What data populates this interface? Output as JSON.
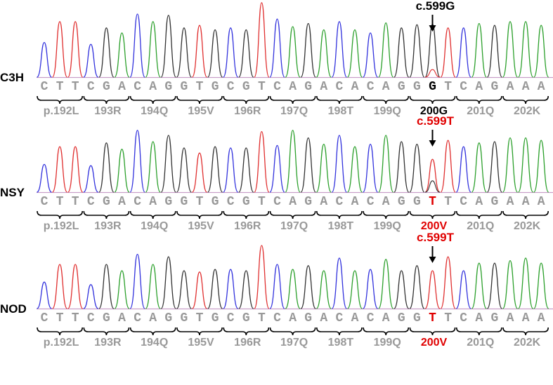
{
  "chart_data": {
    "type": "chromatogram",
    "title": "",
    "channels": [
      {
        "base": "A",
        "color": "#2ca02c"
      },
      {
        "base": "C",
        "color": "#3333dd"
      },
      {
        "base": "G",
        "color": "#333333"
      },
      {
        "base": "T",
        "color": "#e03030"
      }
    ],
    "codons": [
      "CTT",
      "CGA",
      "CAG",
      "GTG",
      "CGT",
      "CAG",
      "ACA",
      "CAG",
      "G?T",
      "CAG",
      "AAA"
    ],
    "muted_color": "#999999",
    "highlight_color_ref": "#000000",
    "highlight_color_mut": "#e00000",
    "tracks": [
      {
        "strain": "C3H",
        "sequence": [
          "C",
          "T",
          "T",
          "C",
          "G",
          "A",
          "C",
          "A",
          "G",
          "G",
          "T",
          "G",
          "C",
          "G",
          "T",
          "C",
          "A",
          "G",
          "A",
          "C",
          "A",
          "C",
          "A",
          "G",
          "G",
          "G",
          "T",
          "C",
          "A",
          "G",
          "A",
          "A",
          "A"
        ],
        "peaks": [
          55,
          88,
          88,
          52,
          78,
          70,
          100,
          88,
          98,
          78,
          82,
          75,
          78,
          75,
          118,
          92,
          80,
          85,
          75,
          88,
          75,
          70,
          86,
          78,
          83,
          84,
          78,
          78,
          85,
          82,
          88,
          88,
          82
        ],
        "secondary_peaks": [
          {
            "index": 25,
            "base": "T",
            "height": 12
          }
        ],
        "aa_labels": [
          "p.192L",
          "193R",
          "194Q",
          "195V",
          "196R",
          "197Q",
          "198T",
          "199Q",
          "200G",
          "201Q",
          "202K"
        ],
        "highlight_codon": 8,
        "highlight_base": 25,
        "mutation_label": "c.599G",
        "mutation_color": "#000000"
      },
      {
        "strain": "NSY",
        "sequence": [
          "C",
          "T",
          "T",
          "C",
          "G",
          "A",
          "C",
          "A",
          "G",
          "G",
          "T",
          "G",
          "C",
          "G",
          "T",
          "C",
          "A",
          "G",
          "A",
          "C",
          "A",
          "C",
          "A",
          "G",
          "G",
          "T",
          "T",
          "C",
          "A",
          "G",
          "A",
          "A",
          "A"
        ],
        "peaks": [
          44,
          72,
          72,
          42,
          78,
          68,
          98,
          80,
          90,
          70,
          62,
          72,
          70,
          70,
          96,
          74,
          98,
          86,
          76,
          90,
          72,
          76,
          90,
          80,
          76,
          52,
          82,
          72,
          78,
          80,
          86,
          86,
          82
        ],
        "secondary_peaks": [
          {
            "index": 25,
            "base": "G",
            "height": 18
          }
        ],
        "aa_labels": [
          "p.192L",
          "193R",
          "194Q",
          "195V",
          "196R",
          "197Q",
          "198T",
          "199Q",
          "200V",
          "201Q",
          "202K"
        ],
        "highlight_codon": 8,
        "highlight_base": 25,
        "mutation_label": "c.599T",
        "mutation_color": "#e00000"
      },
      {
        "strain": "NOD",
        "sequence": [
          "C",
          "T",
          "T",
          "C",
          "G",
          "A",
          "C",
          "A",
          "G",
          "G",
          "T",
          "G",
          "C",
          "G",
          "T",
          "C",
          "A",
          "G",
          "A",
          "C",
          "A",
          "C",
          "A",
          "G",
          "G",
          "T",
          "T",
          "C",
          "A",
          "G",
          "A",
          "A",
          "A"
        ],
        "peaks": [
          42,
          70,
          70,
          38,
          70,
          60,
          86,
          70,
          82,
          60,
          58,
          62,
          62,
          60,
          100,
          70,
          62,
          68,
          60,
          80,
          60,
          62,
          78,
          60,
          68,
          60,
          82,
          60,
          72,
          72,
          76,
          80,
          72
        ],
        "secondary_peaks": [],
        "aa_labels": [
          "p.192L",
          "193R",
          "194Q",
          "195V",
          "196R",
          "197Q",
          "198T",
          "199Q",
          "200V",
          "201Q",
          "202K"
        ],
        "highlight_codon": 8,
        "highlight_base": 25,
        "mutation_label": "c.599T",
        "mutation_color": "#e00000"
      }
    ]
  }
}
